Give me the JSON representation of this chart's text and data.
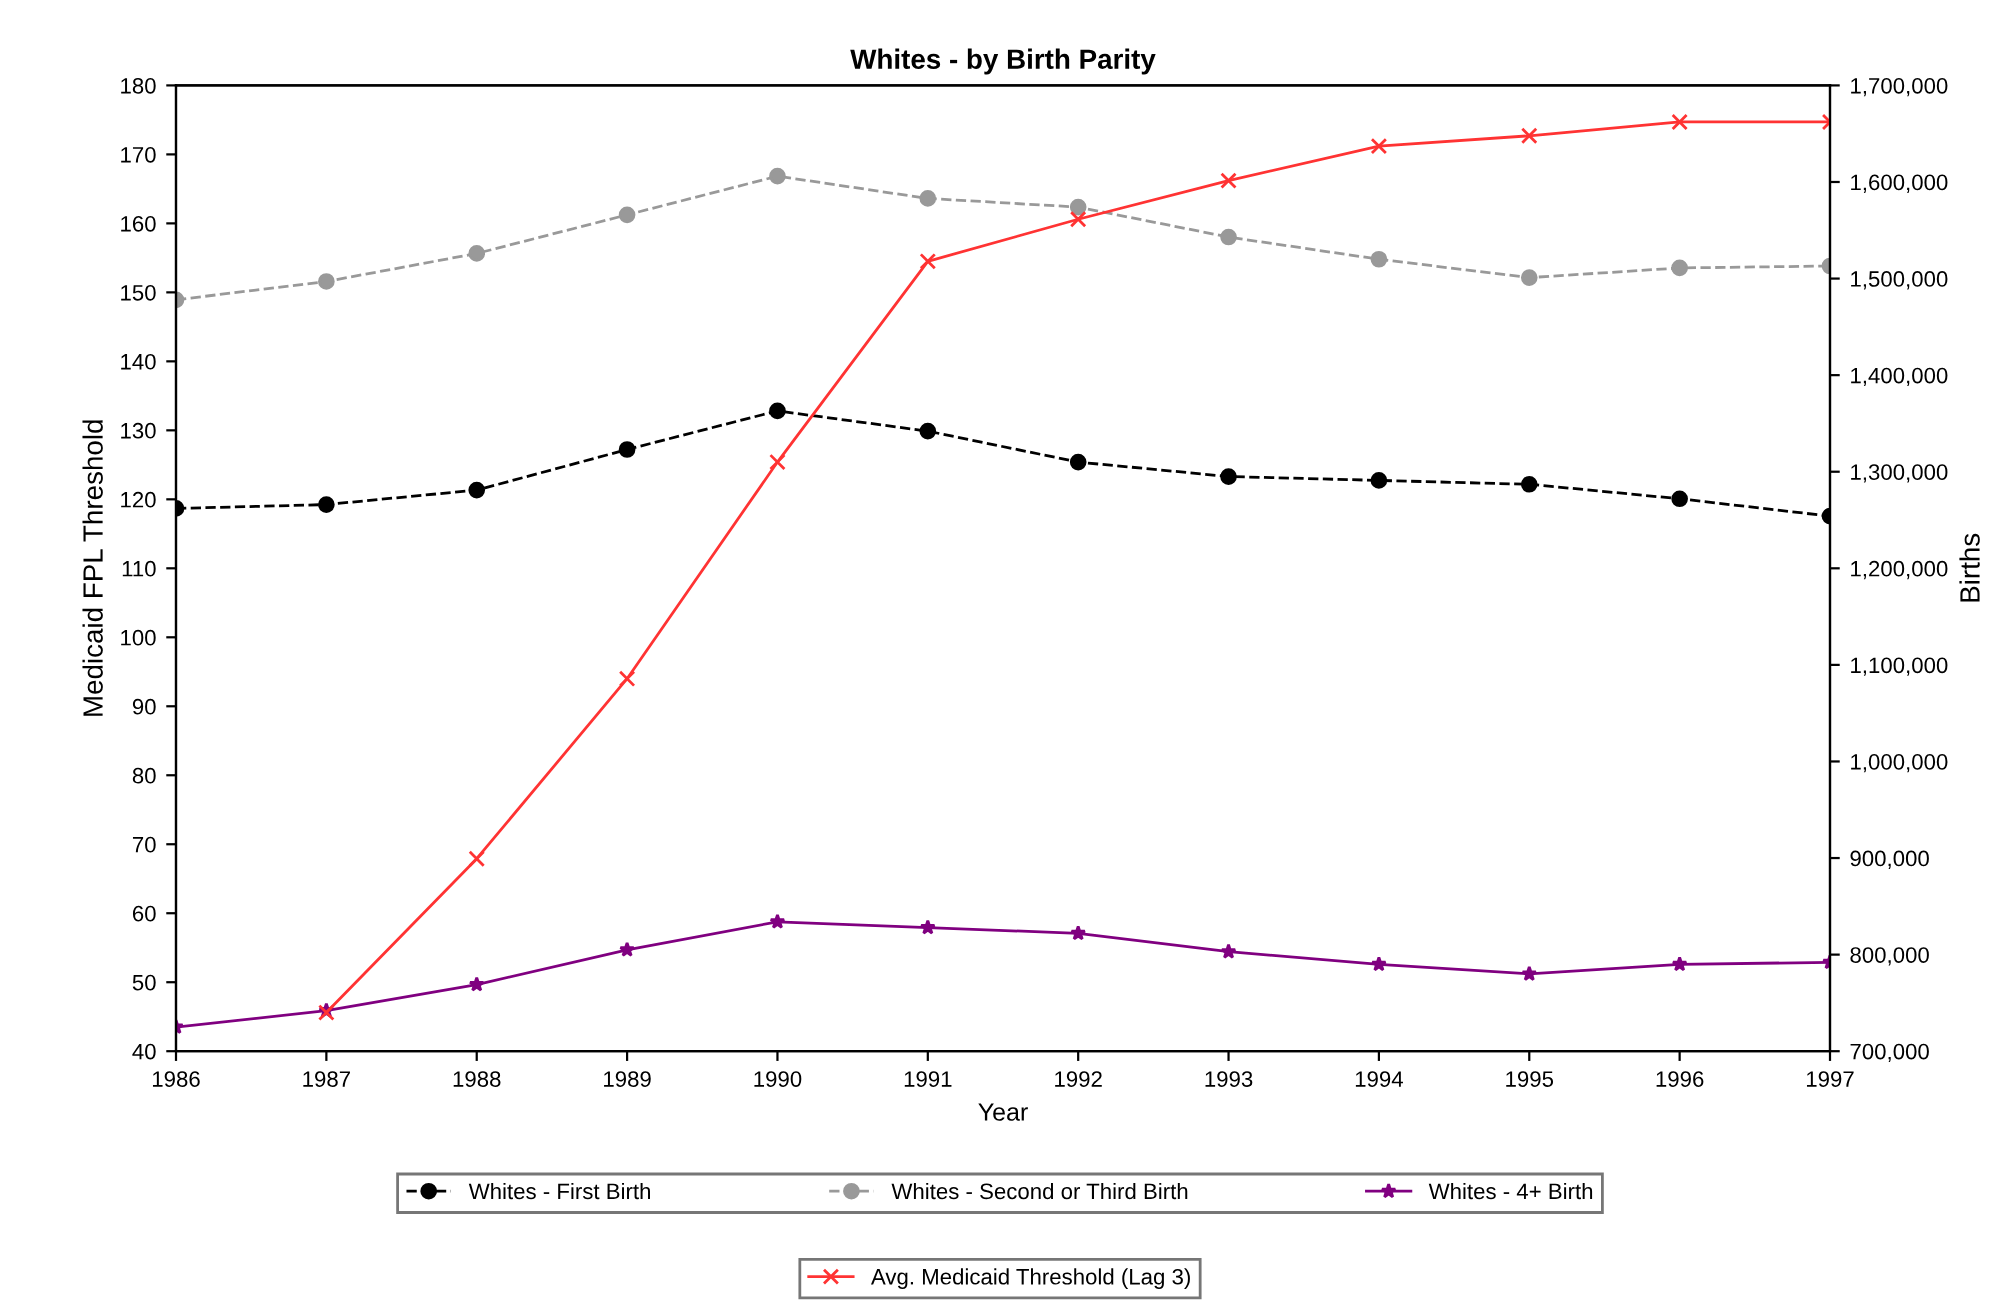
{
  "chart_data": {
    "type": "line",
    "title": "Whites - by Birth Parity",
    "xlabel": "Year",
    "ylabel": "Medicaid FPL Threshold",
    "y2label": "Births",
    "x": [
      1986,
      1987,
      1988,
      1989,
      1990,
      1991,
      1992,
      1993,
      1994,
      1995,
      1996,
      1997
    ],
    "xlim": [
      1986,
      1997
    ],
    "xticks": [
      1986,
      1987,
      1988,
      1989,
      1990,
      1991,
      1992,
      1993,
      1994,
      1995,
      1996,
      1997
    ],
    "ylim": [
      40,
      180
    ],
    "yticks": [
      40,
      50,
      60,
      70,
      80,
      90,
      100,
      110,
      120,
      130,
      140,
      150,
      160,
      170,
      180
    ],
    "y2lim": [
      700000,
      1700000
    ],
    "y2ticks": [
      {
        "value": 700000,
        "label": "700,000"
      },
      {
        "value": 800000,
        "label": "800,000"
      },
      {
        "value": 900000,
        "label": "900,000"
      },
      {
        "value": 1000000,
        "label": "1,000,000"
      },
      {
        "value": 1100000,
        "label": "1,100,000"
      },
      {
        "value": 1200000,
        "label": "1,200,000"
      },
      {
        "value": 1300000,
        "label": "1,300,000"
      },
      {
        "value": 1400000,
        "label": "1,400,000"
      },
      {
        "value": 1500000,
        "label": "1,500,000"
      },
      {
        "value": 1600000,
        "label": "1,600,000"
      },
      {
        "value": 1700000,
        "label": "1,700,000"
      }
    ],
    "grid": false,
    "legend": "bottom",
    "series": [
      {
        "name": "Whites - First Birth",
        "color": "#000000",
        "axis": "y2",
        "marker": "circle",
        "line_style": "dashed",
        "values": [
          1262000,
          1266000,
          1281000,
          1323000,
          1363000,
          1342000,
          1310000,
          1295000,
          1291000,
          1287000,
          1272000,
          1254000
        ]
      },
      {
        "name": "Whites - Second or Third Birth",
        "color": "#999999",
        "axis": "y2",
        "marker": "circle",
        "line_style": "dashed",
        "values": [
          1478000,
          1497000,
          1526000,
          1566000,
          1606000,
          1583000,
          1574000,
          1543000,
          1520000,
          1501000,
          1511000,
          1513000
        ]
      },
      {
        "name": "Whites - 4+ Birth",
        "color": "#800080",
        "axis": "y2",
        "marker": "star",
        "line_style": "solid",
        "values": [
          725000,
          742000,
          769000,
          805000,
          834000,
          828000,
          822000,
          803000,
          790000,
          780000,
          790000,
          792000
        ]
      },
      {
        "name": "Avg. Medicaid Threshold (Lag 3)",
        "color": "#ff3333",
        "axis": "y",
        "marker": "cross",
        "line_style": "solid",
        "values": [
          null,
          45.6,
          67.9,
          94.0,
          125.4,
          154.5,
          160.6,
          166.2,
          171.2,
          172.7,
          174.7,
          174.7
        ]
      }
    ]
  }
}
